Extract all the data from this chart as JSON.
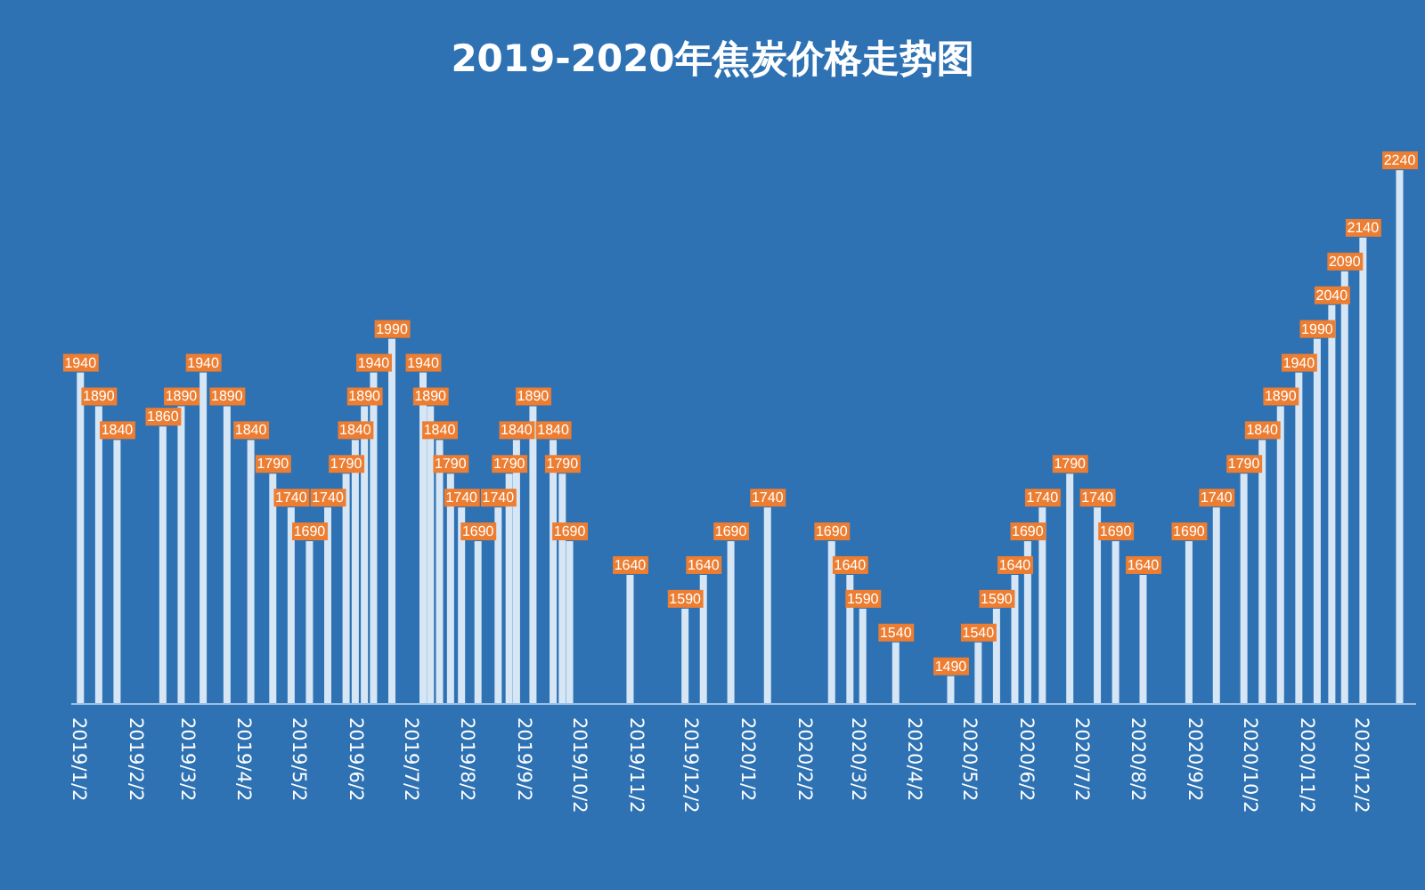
{
  "chart_data": {
    "type": "bar",
    "title": "2019-2020年焦炭价格走势图",
    "color": "#d6e6f5",
    "data_labels": true,
    "tick_labels": "x",
    "x": [
      "2019-01-02",
      "2019-01-12",
      "2019-01-22",
      "2019-02-16",
      "2019-02-26",
      "2019-03-10",
      "2019-03-23",
      "2019-04-05",
      "2019-04-17",
      "2019-04-27",
      "2019-05-07",
      "2019-05-17",
      "2019-05-27",
      "2019-06-01",
      "2019-06-06",
      "2019-06-11",
      "2019-06-21",
      "2019-07-08",
      "2019-07-12",
      "2019-07-17",
      "2019-07-23",
      "2019-07-29",
      "2019-08-07",
      "2019-08-18",
      "2019-08-24",
      "2019-08-28",
      "2019-09-06",
      "2019-09-17",
      "2019-09-22",
      "2019-09-26",
      "2019-10-29",
      "2019-11-28",
      "2019-12-08",
      "2019-12-23",
      "2020-01-12",
      "2020-02-16",
      "2020-02-26",
      "2020-03-04",
      "2020-03-22",
      "2020-04-21",
      "2020-05-06",
      "2020-05-16",
      "2020-05-26",
      "2020-06-02",
      "2020-06-10",
      "2020-06-25",
      "2020-07-10",
      "2020-07-20",
      "2020-08-04",
      "2020-08-29",
      "2020-09-13",
      "2020-09-28",
      "2020-10-08",
      "2020-10-18",
      "2020-10-28",
      "2020-11-07",
      "2020-11-15",
      "2020-11-22",
      "2020-12-02",
      "2020-12-22"
    ],
    "values": [
      1940,
      1890,
      1840,
      1860,
      1890,
      1940,
      1890,
      1840,
      1790,
      1740,
      1690,
      1740,
      1790,
      1840,
      1890,
      1940,
      1990,
      1940,
      1890,
      1840,
      1790,
      1740,
      1690,
      1740,
      1790,
      1840,
      1890,
      1840,
      1790,
      1690,
      1640,
      1590,
      1640,
      1690,
      1740,
      1690,
      1640,
      1590,
      1540,
      1490,
      1540,
      1590,
      1640,
      1690,
      1740,
      1790,
      1740,
      1690,
      1640,
      1690,
      1740,
      1790,
      1840,
      1890,
      1940,
      1990,
      2040,
      2090,
      2140,
      2240
    ],
    "xlim": [
      "2018-12-28",
      "2020-12-31"
    ],
    "ylim": [
      1450,
      2260
    ],
    "xticks": [
      {
        "value": "2019-01-02",
        "label": "2019/1/2"
      },
      {
        "value": "2019-02-02",
        "label": "2019/2/2"
      },
      {
        "value": "2019-03-02",
        "label": "2019/3/2"
      },
      {
        "value": "2019-04-02",
        "label": "2019/4/2"
      },
      {
        "value": "2019-05-02",
        "label": "2019/5/2"
      },
      {
        "value": "2019-06-02",
        "label": "2019/6/2"
      },
      {
        "value": "2019-07-02",
        "label": "2019/7/2"
      },
      {
        "value": "2019-08-02",
        "label": "2019/8/2"
      },
      {
        "value": "2019-09-02",
        "label": "2019/9/2"
      },
      {
        "value": "2019-10-02",
        "label": "2019/10/2"
      },
      {
        "value": "2019-11-02",
        "label": "2019/11/2"
      },
      {
        "value": "2019-12-02",
        "label": "2019/12/2"
      },
      {
        "value": "2020-01-02",
        "label": "2020/1/2"
      },
      {
        "value": "2020-02-02",
        "label": "2020/2/2"
      },
      {
        "value": "2020-03-02",
        "label": "2020/3/2"
      },
      {
        "value": "2020-04-02",
        "label": "2020/4/2"
      },
      {
        "value": "2020-05-02",
        "label": "2020/5/2"
      },
      {
        "value": "2020-06-02",
        "label": "2020/6/2"
      },
      {
        "value": "2020-07-02",
        "label": "2020/7/2"
      },
      {
        "value": "2020-08-02",
        "label": "2020/8/2"
      },
      {
        "value": "2020-09-02",
        "label": "2020/9/2"
      },
      {
        "value": "2020-10-02",
        "label": "2020/10/2"
      },
      {
        "value": "2020-11-02",
        "label": "2020/11/2"
      },
      {
        "value": "2020-12-02",
        "label": "2020/12/2"
      }
    ]
  }
}
